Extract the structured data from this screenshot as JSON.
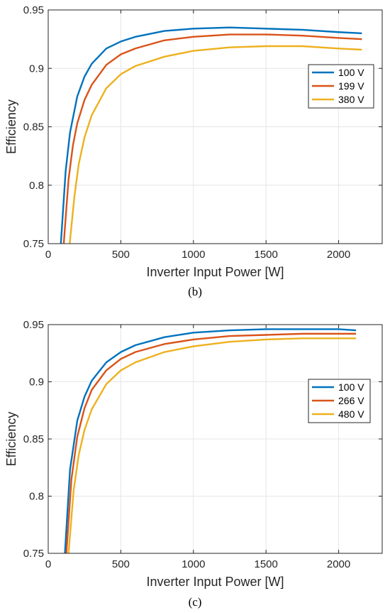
{
  "chart_data": [
    {
      "type": "line",
      "caption": "(b)",
      "xlabel": "Inverter Input Power [W]",
      "ylabel": "Efficiency",
      "xlim": [
        0,
        2300
      ],
      "ylim": [
        0.75,
        0.95
      ],
      "xticks": [
        "0",
        "500",
        "1000",
        "1500",
        "2000"
      ],
      "yticks": [
        "0.75",
        "0.8",
        "0.85",
        "0.9",
        "0.95"
      ],
      "grid": true,
      "legend_position": "right",
      "series": [
        {
          "name": "100 V",
          "color": "#0072BD",
          "x": [
            87,
            120,
            150,
            200,
            250,
            300,
            400,
            500,
            600,
            800,
            1000,
            1250,
            1500,
            1750,
            2000,
            2160
          ],
          "y": [
            0.75,
            0.812,
            0.845,
            0.876,
            0.893,
            0.904,
            0.917,
            0.923,
            0.927,
            0.932,
            0.934,
            0.935,
            0.934,
            0.933,
            0.931,
            0.93
          ]
        },
        {
          "name": "199 V",
          "color": "#D95319",
          "x": [
            107,
            140,
            170,
            200,
            250,
            300,
            400,
            500,
            600,
            800,
            1000,
            1250,
            1500,
            1750,
            2000,
            2160
          ],
          "y": [
            0.75,
            0.805,
            0.834,
            0.853,
            0.873,
            0.886,
            0.903,
            0.912,
            0.917,
            0.924,
            0.927,
            0.929,
            0.929,
            0.928,
            0.926,
            0.925
          ]
        },
        {
          "name": "380 V",
          "color": "#EDB120",
          "x": [
            148,
            180,
            210,
            250,
            300,
            400,
            500,
            600,
            800,
            1000,
            1250,
            1500,
            1750,
            2000,
            2160
          ],
          "y": [
            0.75,
            0.79,
            0.818,
            0.841,
            0.86,
            0.883,
            0.895,
            0.902,
            0.91,
            0.915,
            0.918,
            0.919,
            0.919,
            0.917,
            0.916
          ]
        }
      ]
    },
    {
      "type": "line",
      "caption": "(c)",
      "xlabel": "Inverter Input Power [W]",
      "ylabel": "Efficiency",
      "xlim": [
        0,
        2300
      ],
      "ylim": [
        0.75,
        0.95
      ],
      "xticks": [
        "0",
        "500",
        "1000",
        "1500",
        "2000"
      ],
      "yticks": [
        "0.75",
        "0.8",
        "0.85",
        "0.9",
        "0.95"
      ],
      "grid": true,
      "legend_position": "right",
      "series": [
        {
          "name": "100 V",
          "color": "#0072BD",
          "x": [
            115,
            150,
            200,
            250,
            300,
            400,
            500,
            600,
            800,
            1000,
            1250,
            1500,
            1750,
            2000,
            2120
          ],
          "y": [
            0.75,
            0.823,
            0.866,
            0.887,
            0.901,
            0.917,
            0.926,
            0.932,
            0.939,
            0.943,
            0.945,
            0.946,
            0.946,
            0.946,
            0.945
          ]
        },
        {
          "name": "266 V",
          "color": "#D95319",
          "x": [
            125,
            160,
            200,
            250,
            300,
            400,
            500,
            600,
            800,
            1000,
            1250,
            1500,
            1750,
            2000,
            2120
          ],
          "y": [
            0.75,
            0.815,
            0.852,
            0.877,
            0.893,
            0.91,
            0.92,
            0.926,
            0.933,
            0.937,
            0.94,
            0.941,
            0.942,
            0.942,
            0.942
          ]
        },
        {
          "name": "480 V",
          "color": "#EDB120",
          "x": [
            140,
            175,
            210,
            250,
            300,
            400,
            500,
            600,
            800,
            1000,
            1250,
            1500,
            1750,
            2000,
            2120
          ],
          "y": [
            0.75,
            0.805,
            0.836,
            0.858,
            0.876,
            0.898,
            0.91,
            0.917,
            0.926,
            0.931,
            0.935,
            0.937,
            0.938,
            0.938,
            0.938
          ]
        }
      ]
    }
  ]
}
